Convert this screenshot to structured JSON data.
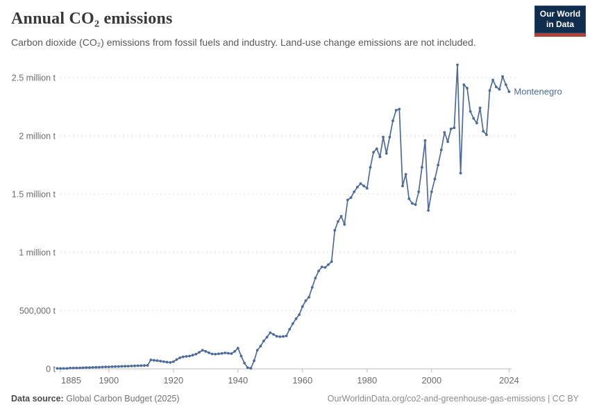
{
  "header": {
    "title": "Annual CO₂ emissions",
    "subtitle": "Carbon dioxide (CO₂) emissions from fossil fuels and industry. Land-use change emissions are not included.",
    "logo": {
      "line1": "Our World",
      "line2": "in Data",
      "bg_color": "#102d4e",
      "stripe_color": "#b0413b"
    }
  },
  "footer": {
    "source_label": "Data source:",
    "source_value": "Global Carbon Budget (2025)",
    "attribution": "OurWorldinData.org/co2-and-greenhouse-gas-emissions | CC BY"
  },
  "chart_data": {
    "type": "line",
    "title": "Annual CO₂ emissions",
    "entity": "Montenegro",
    "unit": "tonnes of CO₂",
    "line_color": "#4C6A9C",
    "grid": true,
    "legend_position": "end-of-line-label",
    "xlim": [
      1884,
      2024
    ],
    "ylim": [
      0,
      2500000
    ],
    "x_ticks": [
      1885,
      1900,
      1920,
      1940,
      1960,
      1980,
      2000,
      2024
    ],
    "y_ticks": [
      {
        "value": 0,
        "label": "0 t"
      },
      {
        "value": 500000,
        "label": "500,000 t"
      },
      {
        "value": 1000000,
        "label": "1 million t"
      },
      {
        "value": 1500000,
        "label": "1.5 million t"
      },
      {
        "value": 2000000,
        "label": "2 million t"
      },
      {
        "value": 2500000,
        "label": "2.5 million t"
      }
    ],
    "series": [
      {
        "name": "Montenegro",
        "color": "#4C6A9C",
        "points": [
          [
            1884,
            3700
          ],
          [
            1885,
            3700
          ],
          [
            1886,
            3700
          ],
          [
            1887,
            3700
          ],
          [
            1888,
            7000
          ],
          [
            1889,
            7000
          ],
          [
            1890,
            7500
          ],
          [
            1891,
            8500
          ],
          [
            1892,
            9500
          ],
          [
            1893,
            10500
          ],
          [
            1894,
            11500
          ],
          [
            1895,
            12500
          ],
          [
            1896,
            13500
          ],
          [
            1897,
            14500
          ],
          [
            1898,
            15500
          ],
          [
            1899,
            16500
          ],
          [
            1900,
            17500
          ],
          [
            1901,
            18500
          ],
          [
            1902,
            19500
          ],
          [
            1903,
            20500
          ],
          [
            1904,
            21500
          ],
          [
            1905,
            22500
          ],
          [
            1906,
            23500
          ],
          [
            1907,
            24500
          ],
          [
            1908,
            25500
          ],
          [
            1909,
            26500
          ],
          [
            1910,
            27500
          ],
          [
            1911,
            28500
          ],
          [
            1912,
            30000
          ],
          [
            1913,
            77000
          ],
          [
            1914,
            73000
          ],
          [
            1915,
            70000
          ],
          [
            1916,
            66000
          ],
          [
            1917,
            62000
          ],
          [
            1918,
            58000
          ],
          [
            1919,
            55000
          ],
          [
            1920,
            62000
          ],
          [
            1921,
            80000
          ],
          [
            1922,
            95000
          ],
          [
            1923,
            103000
          ],
          [
            1924,
            107000
          ],
          [
            1925,
            110000
          ],
          [
            1926,
            118000
          ],
          [
            1927,
            126000
          ],
          [
            1928,
            142000
          ],
          [
            1929,
            160000
          ],
          [
            1930,
            150000
          ],
          [
            1931,
            138000
          ],
          [
            1932,
            128000
          ],
          [
            1933,
            126000
          ],
          [
            1934,
            129000
          ],
          [
            1935,
            132000
          ],
          [
            1936,
            137000
          ],
          [
            1937,
            134000
          ],
          [
            1938,
            131000
          ],
          [
            1939,
            150000
          ],
          [
            1940,
            178000
          ],
          [
            1941,
            110000
          ],
          [
            1942,
            50000
          ],
          [
            1943,
            10000
          ],
          [
            1944,
            5000
          ],
          [
            1945,
            70000
          ],
          [
            1946,
            160000
          ],
          [
            1947,
            195000
          ],
          [
            1948,
            240000
          ],
          [
            1949,
            272000
          ],
          [
            1950,
            310000
          ],
          [
            1951,
            296000
          ],
          [
            1952,
            280000
          ],
          [
            1953,
            276000
          ],
          [
            1954,
            278000
          ],
          [
            1955,
            283000
          ],
          [
            1956,
            340000
          ],
          [
            1957,
            388000
          ],
          [
            1958,
            430000
          ],
          [
            1959,
            465000
          ],
          [
            1960,
            535000
          ],
          [
            1961,
            585000
          ],
          [
            1962,
            615000
          ],
          [
            1963,
            700000
          ],
          [
            1964,
            780000
          ],
          [
            1965,
            840000
          ],
          [
            1966,
            875000
          ],
          [
            1967,
            870000
          ],
          [
            1968,
            895000
          ],
          [
            1969,
            920000
          ],
          [
            1970,
            1190000
          ],
          [
            1971,
            1265000
          ],
          [
            1972,
            1310000
          ],
          [
            1973,
            1240000
          ],
          [
            1974,
            1450000
          ],
          [
            1975,
            1470000
          ],
          [
            1976,
            1520000
          ],
          [
            1977,
            1560000
          ],
          [
            1978,
            1590000
          ],
          [
            1979,
            1570000
          ],
          [
            1980,
            1550000
          ],
          [
            1981,
            1730000
          ],
          [
            1982,
            1860000
          ],
          [
            1983,
            1890000
          ],
          [
            1984,
            1820000
          ],
          [
            1985,
            1990000
          ],
          [
            1986,
            1850000
          ],
          [
            1987,
            1990000
          ],
          [
            1988,
            2130000
          ],
          [
            1989,
            2220000
          ],
          [
            1990,
            2230000
          ],
          [
            1991,
            1570000
          ],
          [
            1992,
            1670000
          ],
          [
            1993,
            1460000
          ],
          [
            1994,
            1420000
          ],
          [
            1995,
            1410000
          ],
          [
            1996,
            1520000
          ],
          [
            1997,
            1730000
          ],
          [
            1998,
            1960000
          ],
          [
            1999,
            1360000
          ],
          [
            2000,
            1520000
          ],
          [
            2001,
            1630000
          ],
          [
            2002,
            1750000
          ],
          [
            2003,
            1880000
          ],
          [
            2004,
            2030000
          ],
          [
            2005,
            1950000
          ],
          [
            2006,
            2060000
          ],
          [
            2007,
            2070000
          ],
          [
            2008,
            2610000
          ],
          [
            2009,
            1680000
          ],
          [
            2010,
            2440000
          ],
          [
            2011,
            2410000
          ],
          [
            2012,
            2210000
          ],
          [
            2013,
            2150000
          ],
          [
            2014,
            2110000
          ],
          [
            2015,
            2240000
          ],
          [
            2016,
            2040000
          ],
          [
            2017,
            2010000
          ],
          [
            2018,
            2390000
          ],
          [
            2019,
            2480000
          ],
          [
            2020,
            2420000
          ],
          [
            2021,
            2400000
          ],
          [
            2022,
            2510000
          ],
          [
            2023,
            2440000
          ],
          [
            2024,
            2380000
          ]
        ]
      }
    ]
  }
}
